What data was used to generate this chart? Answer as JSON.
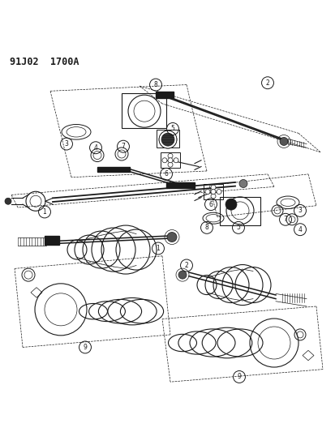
{
  "title": "91J02  1700A",
  "bg_color": "#ffffff",
  "line_color": "#1a1a1a",
  "title_fontsize": 8.5,
  "fig_width": 4.14,
  "fig_height": 5.33,
  "dpi": 100
}
